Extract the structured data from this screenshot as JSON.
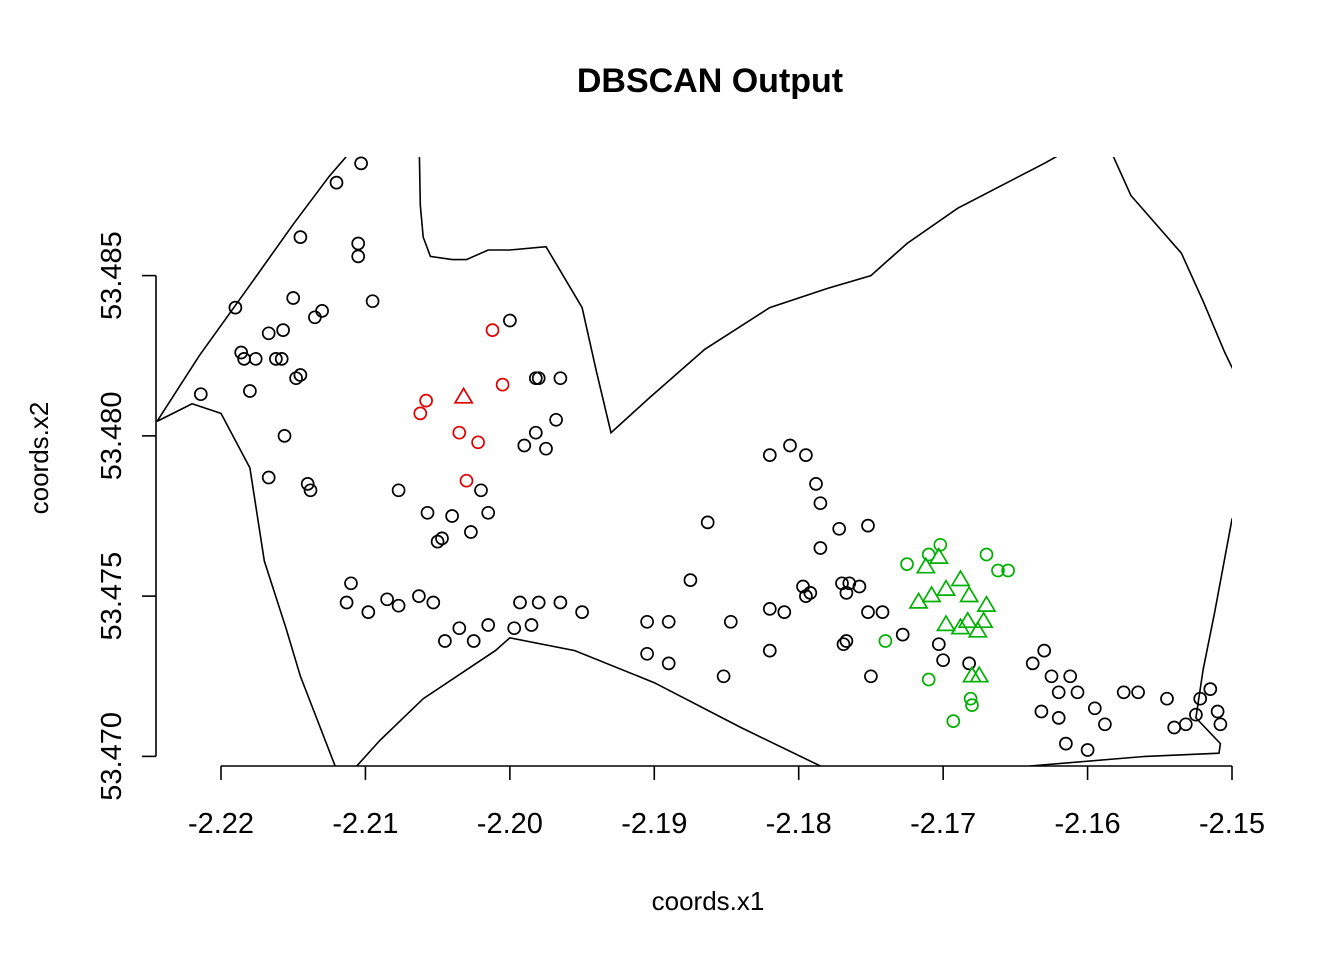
{
  "chart_data": {
    "type": "scatter",
    "title": "DBSCAN Output",
    "xlabel": "coords.x1",
    "ylabel": "coords.x2",
    "xlim": [
      -2.2245,
      -2.15
    ],
    "ylim": [
      53.4697,
      53.4887
    ],
    "x_ticks": [
      -2.22,
      -2.21,
      -2.2,
      -2.19,
      -2.18,
      -2.17,
      -2.16,
      -2.15
    ],
    "x_tick_labels": [
      "-2.22",
      "-2.21",
      "-2.20",
      "-2.19",
      "-2.18",
      "-2.17",
      "-2.16",
      "-2.15"
    ],
    "y_ticks": [
      53.47,
      53.475,
      53.48,
      53.485
    ],
    "y_tick_labels": [
      "53.470",
      "53.475",
      "53.480",
      "53.485"
    ],
    "grid": false,
    "legend": "none",
    "colors": {
      "noise": "#000000",
      "cluster_1": "#e00000",
      "cluster_2": "#00b000",
      "boundary": "#000000"
    },
    "boundary": [
      [
        -2.22443,
        53.48045
      ],
      [
        -2.2215,
        53.4825
      ],
      [
        -2.218,
        53.4847
      ],
      [
        -2.215,
        53.4866
      ],
      [
        -2.2125,
        53.4881
      ],
      [
        -2.21,
        53.4894
      ],
      [
        -2.2063,
        53.4896
      ],
      [
        -2.2062,
        53.4872
      ],
      [
        -2.206,
        53.4862
      ],
      [
        -2.2055,
        53.4856
      ],
      [
        -2.204,
        53.4855
      ],
      [
        -2.203,
        53.4855
      ],
      [
        -2.2015,
        53.4858
      ],
      [
        -2.2,
        53.4858
      ],
      [
        -2.1975,
        53.4859
      ],
      [
        -2.195,
        53.484
      ],
      [
        -2.194,
        53.482
      ],
      [
        -2.193,
        53.4801
      ],
      [
        -2.1903,
        53.4812
      ],
      [
        -2.1865,
        53.4827
      ],
      [
        -2.182,
        53.484
      ],
      [
        -2.178,
        53.4846
      ],
      [
        -2.175,
        53.485
      ],
      [
        -2.1725,
        53.486
      ],
      [
        -2.169,
        53.4871
      ],
      [
        -2.163,
        53.4885
      ],
      [
        -2.159,
        53.4895
      ],
      [
        -2.157,
        53.4875
      ],
      [
        -2.1535,
        53.4857
      ],
      [
        -2.152,
        53.4842
      ],
      [
        -2.1505,
        53.4826
      ],
      [
        -2.149,
        53.4812
      ],
      [
        -2.148,
        53.479
      ],
      [
        -2.15,
        53.4774
      ],
      [
        -2.1512,
        53.4745
      ],
      [
        -2.152,
        53.4727
      ],
      [
        -2.1525,
        53.4712
      ],
      [
        -2.1508,
        53.4704
      ],
      [
        -2.1509,
        53.4701
      ],
      [
        -2.156,
        53.47
      ],
      [
        -2.164,
        53.4697
      ],
      [
        -2.165,
        53.4696
      ],
      [
        -2.169,
        53.469
      ],
      [
        -2.175,
        53.4685
      ],
      [
        -2.176,
        53.4684
      ],
      [
        -2.1785,
        53.4697
      ],
      [
        -2.184,
        53.4709
      ],
      [
        -2.19,
        53.4723
      ],
      [
        -2.1955,
        53.4733
      ],
      [
        -2.2,
        53.4737
      ],
      [
        -2.201,
        53.4733
      ],
      [
        -2.206,
        53.4718
      ],
      [
        -2.209,
        53.4705
      ],
      [
        -2.211,
        53.4695
      ],
      [
        -2.2115,
        53.469
      ],
      [
        -2.2145,
        53.4725
      ],
      [
        -2.2155,
        53.474
      ],
      [
        -2.217,
        53.4761
      ],
      [
        -2.218,
        53.479
      ],
      [
        -2.22,
        53.4807
      ],
      [
        -2.222,
        53.481
      ],
      [
        -2.22443,
        53.48045
      ]
    ],
    "series": [
      {
        "marker": "circle",
        "color": "#000000",
        "points": [
          [
            -2.219,
            53.484
          ],
          [
            -2.218,
            53.4814
          ],
          [
            -2.2167,
            53.4832
          ],
          [
            -2.2157,
            53.4833
          ],
          [
            -2.215,
            53.4843
          ],
          [
            -2.2145,
            53.4862
          ],
          [
            -2.2135,
            53.4837
          ],
          [
            -2.213,
            53.4839
          ],
          [
            -2.212,
            53.4879
          ],
          [
            -2.2105,
            53.4856
          ],
          [
            -2.2105,
            53.486
          ],
          [
            -2.2103,
            53.4885
          ],
          [
            -2.2186,
            53.4826
          ],
          [
            -2.2184,
            53.4824
          ],
          [
            -2.2176,
            53.4824
          ],
          [
            -2.2162,
            53.4824
          ],
          [
            -2.2158,
            53.4824
          ],
          [
            -2.2148,
            53.4818
          ],
          [
            -2.2145,
            53.4819
          ],
          [
            -2.2156,
            53.48
          ],
          [
            -2.2167,
            53.4787
          ],
          [
            -2.2138,
            53.4783
          ],
          [
            -2.214,
            53.4785
          ],
          [
            -2.2214,
            53.4813
          ],
          [
            -2.2095,
            53.4842
          ],
          [
            -2.2077,
            53.4783
          ],
          [
            -2.2057,
            53.4776
          ],
          [
            -2.205,
            53.4767
          ],
          [
            -2.2047,
            53.4768
          ],
          [
            -2.202,
            53.4783
          ],
          [
            -2.2,
            53.4836
          ],
          [
            -2.1982,
            53.4801
          ],
          [
            -2.1982,
            53.4818
          ],
          [
            -2.198,
            53.4818
          ],
          [
            -2.1965,
            53.4818
          ],
          [
            -2.1968,
            53.4805
          ],
          [
            -2.1975,
            53.4796
          ],
          [
            -2.199,
            53.4797
          ],
          [
            -2.2015,
            53.4776
          ],
          [
            -2.2027,
            53.477
          ],
          [
            -2.204,
            53.4775
          ],
          [
            -2.2053,
            53.4748
          ],
          [
            -2.2063,
            53.475
          ],
          [
            -2.2077,
            53.4747
          ],
          [
            -2.2085,
            53.4749
          ],
          [
            -2.2098,
            53.4745
          ],
          [
            -2.211,
            53.4754
          ],
          [
            -2.2113,
            53.4748
          ],
          [
            -2.2045,
            53.4736
          ],
          [
            -2.2035,
            53.474
          ],
          [
            -2.2025,
            53.4736
          ],
          [
            -2.2015,
            53.4741
          ],
          [
            -2.1997,
            53.474
          ],
          [
            -2.1985,
            53.4741
          ],
          [
            -2.198,
            53.4748
          ],
          [
            -2.1993,
            53.4748
          ],
          [
            -2.1965,
            53.4748
          ],
          [
            -2.195,
            53.4745
          ],
          [
            -2.1905,
            53.4742
          ],
          [
            -2.189,
            53.4742
          ],
          [
            -2.1875,
            53.4755
          ],
          [
            -2.1863,
            53.4773
          ],
          [
            -2.1847,
            53.4742
          ],
          [
            -2.182,
            53.4746
          ],
          [
            -2.181,
            53.4745
          ],
          [
            -2.1795,
            53.475
          ],
          [
            -2.1797,
            53.4753
          ],
          [
            -2.1792,
            53.4751
          ],
          [
            -2.1785,
            53.4765
          ],
          [
            -2.1772,
            53.4771
          ],
          [
            -2.1765,
            53.4754
          ],
          [
            -2.1758,
            53.4753
          ],
          [
            -2.1752,
            53.4745
          ],
          [
            -2.1742,
            53.4745
          ],
          [
            -2.1728,
            53.4738
          ],
          [
            -2.1703,
            53.4735
          ],
          [
            -2.17,
            53.473
          ],
          [
            -2.1682,
            53.4729
          ],
          [
            -2.182,
            53.4794
          ],
          [
            -2.1806,
            53.4797
          ],
          [
            -2.1795,
            53.4794
          ],
          [
            -2.1788,
            53.4785
          ],
          [
            -2.1785,
            53.4779
          ],
          [
            -2.177,
            53.4754
          ],
          [
            -2.1767,
            53.4751
          ],
          [
            -2.1752,
            53.4772
          ],
          [
            -2.1767,
            53.4736
          ],
          [
            -2.1769,
            53.4735
          ],
          [
            -2.1905,
            53.4732
          ],
          [
            -2.189,
            53.4729
          ],
          [
            -2.1852,
            53.4725
          ],
          [
            -2.182,
            53.4733
          ],
          [
            -2.175,
            53.4725
          ],
          [
            -2.163,
            53.4733
          ],
          [
            -2.1625,
            53.4725
          ],
          [
            -2.162,
            53.472
          ],
          [
            -2.162,
            53.4712
          ],
          [
            -2.1612,
            53.4725
          ],
          [
            -2.1607,
            53.472
          ],
          [
            -2.1595,
            53.4715
          ],
          [
            -2.1588,
            53.471
          ],
          [
            -2.1575,
            53.472
          ],
          [
            -2.1565,
            53.472
          ],
          [
            -2.1545,
            53.4718
          ],
          [
            -2.154,
            53.4709
          ],
          [
            -2.1532,
            53.471
          ],
          [
            -2.1525,
            53.4713
          ],
          [
            -2.1522,
            53.4718
          ],
          [
            -2.1515,
            53.4721
          ],
          [
            -2.151,
            53.4714
          ],
          [
            -2.1508,
            53.471
          ],
          [
            -2.1638,
            53.4729
          ],
          [
            -2.1632,
            53.4714
          ],
          [
            -2.1615,
            53.4704
          ],
          [
            -2.16,
            53.4702
          ]
        ]
      },
      {
        "marker": "circle",
        "color": "#e00000",
        "points": [
          [
            -2.2012,
            53.4833
          ],
          [
            -2.2005,
            53.4816
          ],
          [
            -2.2058,
            53.4811
          ],
          [
            -2.2062,
            53.4807
          ],
          [
            -2.2035,
            53.4801
          ],
          [
            -2.2022,
            53.4798
          ],
          [
            -2.203,
            53.4786
          ]
        ]
      },
      {
        "marker": "triangle",
        "color": "#e00000",
        "points": [
          [
            -2.2032,
            53.4812
          ]
        ]
      },
      {
        "marker": "circle",
        "color": "#00b000",
        "points": [
          [
            -2.1725,
            53.476
          ],
          [
            -2.171,
            53.4763
          ],
          [
            -2.1702,
            53.4766
          ],
          [
            -2.167,
            53.4763
          ],
          [
            -2.1662,
            53.4758
          ],
          [
            -2.1655,
            53.4758
          ],
          [
            -2.174,
            53.4736
          ],
          [
            -2.171,
            53.4724
          ],
          [
            -2.1681,
            53.4718
          ],
          [
            -2.168,
            53.4716
          ],
          [
            -2.1693,
            53.4711
          ]
        ]
      },
      {
        "marker": "triangle",
        "color": "#00b000",
        "points": [
          [
            -2.1712,
            53.4759
          ],
          [
            -2.1703,
            53.4762
          ],
          [
            -2.1688,
            53.4755
          ],
          [
            -2.1698,
            53.4752
          ],
          [
            -2.1708,
            53.475
          ],
          [
            -2.1717,
            53.4748
          ],
          [
            -2.1682,
            53.475
          ],
          [
            -2.167,
            53.4747
          ],
          [
            -2.1672,
            53.4742
          ],
          [
            -2.1683,
            53.4742
          ],
          [
            -2.1698,
            53.4741
          ],
          [
            -2.1688,
            53.474
          ],
          [
            -2.1676,
            53.4739
          ],
          [
            -2.1675,
            53.4725
          ],
          [
            -2.168,
            53.4725
          ]
        ]
      }
    ]
  }
}
